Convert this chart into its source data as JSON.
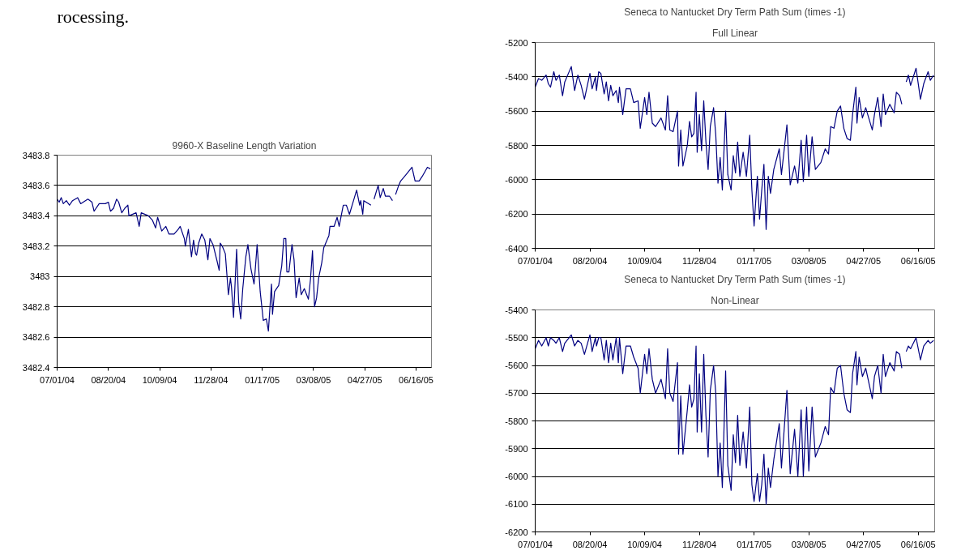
{
  "chart_data": [
    {
      "type": "other",
      "annotations": [
        "rocessing."
      ]
    },
    {
      "type": "line",
      "title": "9960-X Baseline Length Variation",
      "grid": "y",
      "marker": "none",
      "line_style": "solid",
      "xlim": [
        "2004-07-01",
        "2005-07-01"
      ],
      "xticks": [
        {
          "value": "2004-07-01",
          "label": "07/01/04"
        },
        {
          "value": "2004-08-20",
          "label": "08/20/04"
        },
        {
          "value": "2004-10-09",
          "label": "10/09/04"
        },
        {
          "value": "2004-11-28",
          "label": "11/28/04"
        },
        {
          "value": "2005-01-17",
          "label": "01/17/05"
        },
        {
          "value": "2005-03-08",
          "label": "03/08/05"
        },
        {
          "value": "2005-04-27",
          "label": "04/27/05"
        },
        {
          "value": "2005-06-16",
          "label": "06/16/05"
        }
      ],
      "ylim": [
        3482.4,
        3483.8
      ],
      "yticks": [
        3482.4,
        3482.6,
        3482.8,
        3483,
        3483.2,
        3483.4,
        3483.6,
        3483.8
      ],
      "x": [
        "2004-07-01",
        "2004-07-03",
        "2004-07-05",
        "2004-07-07",
        "2004-07-10",
        "2004-07-13",
        "2004-07-16",
        "2004-07-21",
        "2004-07-24",
        "2004-07-31",
        "2004-08-04",
        "2004-08-06",
        "2004-08-11",
        "2004-08-17",
        "2004-08-20",
        "2004-08-22",
        "2004-08-25",
        "2004-08-28",
        "2004-08-30",
        "2004-09-02",
        "2004-09-05",
        "2004-09-08",
        "2004-09-09",
        "2004-09-16",
        "2004-09-19",
        "2004-09-21",
        "2004-09-28",
        "2004-10-02",
        "2004-10-05",
        "2004-10-07",
        "2004-10-11",
        "2004-10-15",
        "2004-10-18",
        "2004-10-23",
        "2004-10-27",
        "2004-10-29",
        "2004-11-02",
        "2004-11-03",
        "2004-11-06",
        "2004-11-09",
        "2004-11-11",
        "2004-11-13",
        "2004-11-14",
        "2004-11-16",
        "2004-11-19",
        "2004-11-22",
        "2004-11-25",
        "2004-11-27",
        "2004-11-30",
        "2004-12-04",
        "2004-12-06",
        "2004-12-07",
        "2004-12-09",
        "2004-12-12",
        "2004-12-15",
        "2004-12-17",
        "2004-12-18",
        "2004-12-20",
        "2004-12-23",
        "2004-12-25",
        "2004-12-27",
        "2004-12-29",
        "2005-01-01",
        "2005-01-03",
        "2005-01-06",
        "2005-01-09",
        "2005-01-10",
        "2005-01-12",
        "2005-01-15",
        "2005-01-18",
        "2005-01-21",
        "2005-01-23",
        "2005-01-26",
        "2005-01-27",
        "2005-01-29",
        "2005-02-02",
        "2005-02-05",
        "2005-02-07",
        "2005-02-09",
        "2005-02-10",
        "2005-02-12",
        "2005-02-15",
        "2005-02-17",
        "2005-02-19",
        "2005-02-22",
        "2005-02-24",
        "2005-02-27",
        "2005-03-03",
        "2005-03-05",
        "2005-03-07",
        "2005-03-09",
        "2005-03-11",
        "2005-03-13",
        "2005-03-16",
        "2005-03-18",
        "2005-03-23",
        "2005-03-24",
        "2005-03-28",
        "2005-03-31",
        "2005-04-02",
        "2005-04-06",
        "2005-04-09",
        "2005-04-12",
        "2005-04-16",
        "2005-04-19",
        "2005-04-22",
        "2005-04-23",
        "2005-04-25",
        "2005-04-26",
        "2005-05-03",
        "2005-05-04",
        "2005-05-06",
        "2005-05-10",
        "2005-05-12",
        "2005-05-15",
        "2005-05-17",
        "2005-05-21",
        "2005-05-24",
        "2005-05-26",
        "2005-05-27",
        "2005-05-30",
        "2005-06-01",
        "2005-06-06",
        "2005-06-12",
        "2005-06-15",
        "2005-06-19",
        "2005-06-22",
        "2005-06-27",
        "2005-06-30"
      ],
      "series": [
        {
          "color": "#000080",
          "values": [
            3483.51,
            3483.49,
            3483.52,
            3483.48,
            3483.5,
            3483.47,
            3483.5,
            3483.52,
            3483.48,
            3483.51,
            3483.49,
            3483.43,
            3483.48,
            3483.48,
            3483.49,
            3483.43,
            3483.45,
            3483.51,
            3483.49,
            3483.42,
            3483.45,
            3483.47,
            3483.4,
            3483.42,
            3483.33,
            3483.42,
            3483.4,
            3483.37,
            3483.32,
            3483.39,
            3483.3,
            3483.33,
            3483.28,
            3483.28,
            3483.31,
            3483.33,
            3483.25,
            3483.2,
            3483.31,
            3483.13,
            3483.24,
            3483.15,
            3483.14,
            3483.22,
            3483.28,
            3483.24,
            3483.11,
            3483.25,
            3483.21,
            3483.1,
            3483.04,
            3483.22,
            3483.2,
            3483.15,
            3482.88,
            3482.99,
            3482.93,
            3482.73,
            3483.18,
            3482.83,
            3482.72,
            3482.92,
            3483.13,
            3483.21,
            3483.05,
            3482.95,
            3483.03,
            3483.21,
            3482.9,
            3482.71,
            3482.72,
            3482.64,
            3482.95,
            3482.75,
            3482.9,
            3482.94,
            3483.07,
            3483.25,
            3483.25,
            3483.03,
            3483.03,
            3483.21,
            3483.11,
            3482.86,
            3482.99,
            3482.88,
            3482.92,
            3482.85,
            3482.98,
            3483.17,
            3482.8,
            3482.86,
            3482.99,
            3483.09,
            3483.19,
            3483.27,
            3483.33,
            3483.33,
            3483.39,
            3483.33,
            3483.47,
            3483.47,
            3483.41,
            3483.5,
            3483.57,
            3483.47,
            3483.5,
            3483.41,
            3483.5,
            3483.47,
            null,
            3483.51,
            3483.6,
            3483.52,
            3483.58,
            3483.53,
            3483.53,
            3483.5,
            null,
            3483.54,
            3483.6,
            3483.63,
            3483.67,
            3483.72,
            3483.63,
            3483.63,
            3483.66,
            3483.72,
            3483.71
          ]
        }
      ]
    },
    {
      "type": "line",
      "title": "Seneca to Nantucket Dry Term Path Sum (times -1)",
      "subtitle": "Full Linear",
      "grid": "y",
      "marker": "none",
      "line_style": "solid",
      "xlim": [
        "2004-07-01",
        "2005-07-01"
      ],
      "xticks": [
        {
          "value": "2004-07-01",
          "label": "07/01/04"
        },
        {
          "value": "2004-08-20",
          "label": "08/20/04"
        },
        {
          "value": "2004-10-09",
          "label": "10/09/04"
        },
        {
          "value": "2004-11-28",
          "label": "11/28/04"
        },
        {
          "value": "2005-01-17",
          "label": "01/17/05"
        },
        {
          "value": "2005-03-08",
          "label": "03/08/05"
        },
        {
          "value": "2005-04-27",
          "label": "04/27/05"
        },
        {
          "value": "2005-06-16",
          "label": "06/16/05"
        }
      ],
      "ylim": [
        -6400,
        -5200
      ],
      "yticks": [
        -6400,
        -6200,
        -6000,
        -5800,
        -5600,
        -5400,
        -5200
      ],
      "x": [
        "2004-07-01",
        "2004-07-04",
        "2004-07-07",
        "2004-07-11",
        "2004-07-13",
        "2004-07-15",
        "2004-07-18",
        "2004-07-20",
        "2004-07-23",
        "2004-07-26",
        "2004-07-28",
        "2004-08-03",
        "2004-08-06",
        "2004-08-09",
        "2004-08-12",
        "2004-08-15",
        "2004-08-20",
        "2004-08-22",
        "2004-08-25",
        "2004-08-26",
        "2004-08-28",
        "2004-08-30",
        "2004-09-02",
        "2004-09-04",
        "2004-09-06",
        "2004-09-08",
        "2004-09-10",
        "2004-09-13",
        "2004-09-15",
        "2004-09-16",
        "2004-09-19",
        "2004-09-22",
        "2004-09-26",
        "2004-09-29",
        "2004-10-03",
        "2004-10-05",
        "2004-10-09",
        "2004-10-11",
        "2004-10-13",
        "2004-10-16",
        "2004-10-19",
        "2004-10-24",
        "2004-10-28",
        "2004-10-30",
        "2004-11-01",
        "2004-11-04",
        "2004-11-08",
        "2004-11-09",
        "2004-11-11",
        "2004-11-13",
        "2004-11-17",
        "2004-11-19",
        "2004-11-21",
        "2004-11-23",
        "2004-11-25",
        "2004-11-26",
        "2004-11-28",
        "2004-11-30",
        "2004-12-02",
        "2004-12-04",
        "2004-12-06",
        "2004-12-08",
        "2004-12-11",
        "2004-12-13",
        "2004-12-15",
        "2004-12-17",
        "2004-12-19",
        "2004-12-22",
        "2004-12-24",
        "2004-12-27",
        "2004-12-29",
        "2004-12-31",
        "2005-01-02",
        "2005-01-04",
        "2005-01-07",
        "2005-01-10",
        "2005-01-13",
        "2005-01-15",
        "2005-01-17",
        "2005-01-20",
        "2005-01-22",
        "2005-01-24",
        "2005-01-26",
        "2005-01-28",
        "2005-01-30",
        "2005-02-01",
        "2005-02-04",
        "2005-02-09",
        "2005-02-11",
        "2005-02-16",
        "2005-02-19",
        "2005-02-23",
        "2005-02-26",
        "2005-03-01",
        "2005-03-03",
        "2005-03-06",
        "2005-03-08",
        "2005-03-11",
        "2005-03-14",
        "2005-03-19",
        "2005-03-23",
        "2005-03-26",
        "2005-03-28",
        "2005-03-31",
        "2005-04-03",
        "2005-04-06",
        "2005-04-09",
        "2005-04-12",
        "2005-04-15",
        "2005-04-17",
        "2005-04-20",
        "2005-04-21",
        "2005-04-23",
        "2005-04-26",
        "2005-04-29",
        "2005-05-05",
        "2005-05-07",
        "2005-05-10",
        "2005-05-13",
        "2005-05-15",
        "2005-05-17",
        "2005-05-21",
        "2005-05-25",
        "2005-05-27",
        "2005-05-30",
        "2005-06-01",
        "2005-06-03",
        "2005-06-05",
        "2005-06-07",
        "2005-06-09",
        "2005-06-14",
        "2005-06-18",
        "2005-06-21",
        "2005-06-25",
        "2005-06-27",
        "2005-06-30"
      ],
      "series": [
        {
          "color": "#000080",
          "values": [
            -5460,
            -5410,
            -5420,
            -5390,
            -5440,
            -5460,
            -5370,
            -5420,
            -5390,
            -5510,
            -5430,
            -5340,
            -5480,
            -5390,
            -5450,
            -5530,
            -5380,
            -5470,
            -5400,
            -5480,
            -5370,
            -5380,
            -5500,
            -5430,
            -5540,
            -5450,
            -5510,
            -5480,
            -5550,
            -5460,
            -5620,
            -5470,
            -5470,
            -5550,
            -5540,
            -5700,
            -5520,
            -5620,
            -5490,
            -5670,
            -5690,
            -5640,
            -5710,
            -5510,
            -5710,
            -5720,
            -5600,
            -5920,
            -5710,
            -5920,
            -5800,
            -5660,
            -5750,
            -5730,
            -5490,
            -5840,
            -5620,
            -5830,
            -5540,
            -5780,
            -5940,
            -5690,
            -5580,
            -5740,
            -6020,
            -5870,
            -6060,
            -5600,
            -5970,
            -6060,
            -5860,
            -5960,
            -5780,
            -5980,
            -5840,
            -5980,
            -5740,
            -6060,
            -6270,
            -5980,
            -6230,
            -6060,
            -5910,
            -6290,
            -5980,
            -6080,
            -5940,
            -5820,
            -5970,
            -5680,
            -6030,
            -5920,
            -6020,
            -5770,
            -6010,
            -5740,
            -5980,
            -5750,
            -5940,
            -5900,
            -5820,
            -5850,
            -5690,
            -5700,
            -5600,
            -5570,
            -5700,
            -5760,
            -5770,
            -5620,
            -5460,
            -5670,
            -5520,
            -5640,
            -5580,
            -5710,
            -5620,
            -5520,
            -5690,
            -5500,
            -5620,
            -5560,
            -5610,
            -5490,
            -5510,
            -5560,
            null,
            -5430,
            -5390,
            -5450,
            -5350,
            -5530,
            -5440,
            -5370,
            -5420,
            -5390
          ]
        }
      ]
    },
    {
      "type": "line",
      "title": "Seneca to Nantucket Dry Term Path Sum (times -1)",
      "subtitle": "Non-Linear",
      "grid": "y",
      "marker": "none",
      "line_style": "solid",
      "xlim": [
        "2004-07-01",
        "2005-07-01"
      ],
      "xticks": [
        {
          "value": "2004-07-01",
          "label": "07/01/04"
        },
        {
          "value": "2004-08-20",
          "label": "08/20/04"
        },
        {
          "value": "2004-10-09",
          "label": "10/09/04"
        },
        {
          "value": "2004-11-28",
          "label": "11/28/04"
        },
        {
          "value": "2005-01-17",
          "label": "01/17/05"
        },
        {
          "value": "2005-03-08",
          "label": "03/08/05"
        },
        {
          "value": "2005-04-27",
          "label": "04/27/05"
        },
        {
          "value": "2005-06-16",
          "label": "06/16/05"
        }
      ],
      "ylim": [
        -6200,
        -5400
      ],
      "yticks": [
        -6200,
        -6100,
        -6000,
        -5900,
        -5800,
        -5700,
        -5600,
        -5500,
        -5400
      ],
      "x": [
        "2004-07-01",
        "2004-07-04",
        "2004-07-07",
        "2004-07-11",
        "2004-07-13",
        "2004-07-15",
        "2004-07-18",
        "2004-07-20",
        "2004-07-23",
        "2004-07-26",
        "2004-07-28",
        "2004-08-03",
        "2004-08-06",
        "2004-08-09",
        "2004-08-12",
        "2004-08-15",
        "2004-08-20",
        "2004-08-22",
        "2004-08-25",
        "2004-08-26",
        "2004-08-28",
        "2004-08-30",
        "2004-09-02",
        "2004-09-04",
        "2004-09-06",
        "2004-09-08",
        "2004-09-10",
        "2004-09-13",
        "2004-09-15",
        "2004-09-16",
        "2004-09-19",
        "2004-09-22",
        "2004-09-26",
        "2004-09-29",
        "2004-10-03",
        "2004-10-05",
        "2004-10-09",
        "2004-10-11",
        "2004-10-13",
        "2004-10-16",
        "2004-10-19",
        "2004-10-24",
        "2004-10-28",
        "2004-10-30",
        "2004-11-01",
        "2004-11-04",
        "2004-11-08",
        "2004-11-09",
        "2004-11-11",
        "2004-11-13",
        "2004-11-17",
        "2004-11-19",
        "2004-11-21",
        "2004-11-23",
        "2004-11-25",
        "2004-11-26",
        "2004-11-28",
        "2004-11-30",
        "2004-12-02",
        "2004-12-04",
        "2004-12-06",
        "2004-12-08",
        "2004-12-11",
        "2004-12-13",
        "2004-12-15",
        "2004-12-17",
        "2004-12-19",
        "2004-12-22",
        "2004-12-24",
        "2004-12-27",
        "2004-12-29",
        "2004-12-31",
        "2005-01-02",
        "2005-01-04",
        "2005-01-07",
        "2005-01-10",
        "2005-01-13",
        "2005-01-15",
        "2005-01-17",
        "2005-01-20",
        "2005-01-22",
        "2005-01-24",
        "2005-01-26",
        "2005-01-28",
        "2005-01-30",
        "2005-02-01",
        "2005-02-04",
        "2005-02-09",
        "2005-02-11",
        "2005-02-16",
        "2005-02-19",
        "2005-02-23",
        "2005-02-26",
        "2005-03-01",
        "2005-03-03",
        "2005-03-06",
        "2005-03-08",
        "2005-03-11",
        "2005-03-14",
        "2005-03-19",
        "2005-03-23",
        "2005-03-26",
        "2005-03-28",
        "2005-03-31",
        "2005-04-03",
        "2005-04-06",
        "2005-04-09",
        "2005-04-12",
        "2005-04-15",
        "2005-04-17",
        "2005-04-20",
        "2005-04-21",
        "2005-04-23",
        "2005-04-26",
        "2005-04-29",
        "2005-05-05",
        "2005-05-07",
        "2005-05-10",
        "2005-05-13",
        "2005-05-15",
        "2005-05-17",
        "2005-05-21",
        "2005-05-25",
        "2005-05-27",
        "2005-05-30",
        "2005-06-01",
        "2005-06-03",
        "2005-06-05",
        "2005-06-07",
        "2005-06-09",
        "2005-06-14",
        "2005-06-18",
        "2005-06-21",
        "2005-06-25",
        "2005-06-27",
        "2005-06-30"
      ],
      "series": [
        {
          "color": "#000080",
          "values": [
            -5540,
            -5510,
            -5530,
            -5500,
            -5530,
            -5500,
            -5510,
            -5520,
            -5500,
            -5550,
            -5520,
            -5490,
            -5530,
            -5510,
            -5520,
            -5560,
            -5490,
            -5550,
            -5500,
            -5530,
            -5500,
            -5500,
            -5580,
            -5510,
            -5590,
            -5520,
            -5580,
            -5500,
            -5590,
            -5500,
            -5630,
            -5530,
            -5530,
            -5570,
            -5610,
            -5700,
            -5560,
            -5630,
            -5540,
            -5650,
            -5700,
            -5650,
            -5720,
            -5540,
            -5700,
            -5730,
            -5590,
            -5920,
            -5710,
            -5920,
            -5760,
            -5670,
            -5750,
            -5720,
            -5530,
            -5840,
            -5630,
            -5840,
            -5560,
            -5780,
            -5930,
            -5690,
            -5600,
            -5700,
            -6000,
            -5880,
            -6040,
            -5620,
            -5960,
            -6050,
            -5850,
            -5950,
            -5780,
            -5960,
            -5840,
            -5970,
            -5750,
            -6030,
            -6090,
            -5990,
            -6090,
            -6030,
            -5920,
            -6100,
            -5970,
            -6040,
            -5940,
            -5810,
            -5970,
            -5690,
            -5990,
            -5830,
            -6000,
            -5760,
            -6000,
            -5750,
            -5980,
            -5750,
            -5930,
            -5880,
            -5820,
            -5850,
            -5680,
            -5700,
            -5610,
            -5600,
            -5700,
            -5760,
            -5770,
            -5630,
            -5550,
            -5670,
            -5570,
            -5640,
            -5610,
            -5720,
            -5640,
            -5600,
            -5700,
            -5560,
            -5640,
            -5590,
            -5620,
            -5550,
            -5560,
            -5610,
            null,
            -5550,
            -5530,
            -5540,
            -5500,
            -5580,
            -5530,
            -5510,
            -5520,
            -5510
          ]
        }
      ]
    }
  ]
}
